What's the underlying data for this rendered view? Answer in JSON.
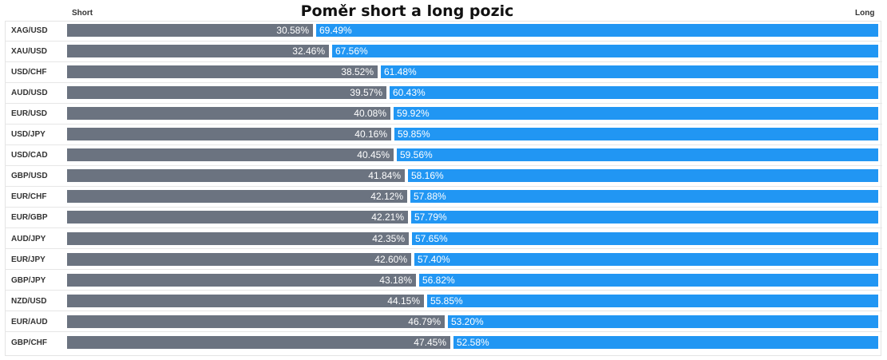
{
  "chart_data": {
    "type": "bar",
    "title": "Poměr short a long pozic",
    "short_label": "Short",
    "long_label": "Long",
    "colors": {
      "short": "#6b7380",
      "long": "#2196f3"
    },
    "categories": [
      "XAG/USD",
      "XAU/USD",
      "USD/CHF",
      "AUD/USD",
      "EUR/USD",
      "USD/JPY",
      "USD/CAD",
      "GBP/USD",
      "EUR/CHF",
      "EUR/GBP",
      "AUD/JPY",
      "EUR/JPY",
      "GBP/JPY",
      "NZD/USD",
      "EUR/AUD",
      "GBP/CHF"
    ],
    "series": [
      {
        "name": "Short",
        "values": [
          30.58,
          32.46,
          38.52,
          39.57,
          40.08,
          40.16,
          40.45,
          41.84,
          42.12,
          42.21,
          42.35,
          42.6,
          43.18,
          44.15,
          46.79,
          47.45
        ]
      },
      {
        "name": "Long",
        "values": [
          69.49,
          67.56,
          61.48,
          60.43,
          59.92,
          59.85,
          59.56,
          58.16,
          57.88,
          57.79,
          57.65,
          57.4,
          56.82,
          55.85,
          53.2,
          52.58
        ]
      }
    ],
    "short_labels": [
      "30.58%",
      "32.46%",
      "38.52%",
      "39.57%",
      "40.08%",
      "40.16%",
      "40.45%",
      "41.84%",
      "42.12%",
      "42.21%",
      "42.35%",
      "42.60%",
      "43.18%",
      "44.15%",
      "46.79%",
      "47.45%"
    ],
    "long_labels": [
      "69.49%",
      "67.56%",
      "61.48%",
      "60.43%",
      "59.92%",
      "59.85%",
      "59.56%",
      "58.16%",
      "57.88%",
      "57.79%",
      "57.65%",
      "57.40%",
      "56.82%",
      "55.85%",
      "53.20%",
      "52.58%"
    ]
  }
}
